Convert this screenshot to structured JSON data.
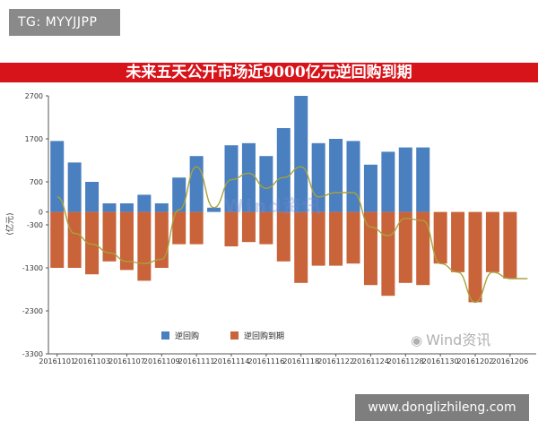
{
  "tag": "TG: MYYJJPP",
  "url": "www.donglizhileng.com",
  "source": {
    "icon": "wechat-icon",
    "text": "Wind资讯"
  },
  "watermark": "Wind资讯",
  "chart_data": {
    "type": "bar",
    "title": "未来五天公开市场近9000亿元逆回购到期",
    "ylabel": "(亿元)",
    "ylim": [
      -3300,
      2700
    ],
    "yticks": [
      2700,
      1700,
      700,
      0,
      -300,
      -1300,
      -2300,
      -3300
    ],
    "xticks": [
      "20161101",
      "20161103",
      "20161107",
      "20161109",
      "20161111",
      "20161114",
      "20161116",
      "20161118",
      "20161122",
      "20161124",
      "20161128",
      "20161130",
      "20161202",
      "20161206"
    ],
    "legend_position": "bottom-left",
    "series": [
      {
        "name": "逆回购",
        "color": "#4a7fc0",
        "values": [
          1650,
          1150,
          700,
          200,
          200,
          400,
          200,
          800,
          1300,
          100,
          1550,
          1600,
          1300,
          1950,
          2700,
          1600,
          1700,
          1650,
          1100,
          1400,
          1500,
          1500,
          0,
          0,
          0,
          0,
          0,
          0
        ]
      },
      {
        "name": "逆回购到期",
        "color": "#c9633a",
        "values": [
          -1300,
          -1300,
          -1450,
          -1150,
          -1350,
          -1600,
          -1300,
          -750,
          -750,
          0,
          -800,
          -700,
          -750,
          -1150,
          -1650,
          -1250,
          -1250,
          -1200,
          -1700,
          -1950,
          -1650,
          -1700,
          -1200,
          -1400,
          -2100,
          -1400,
          -1550,
          0
        ]
      },
      {
        "name": "",
        "color": "#a8a23a",
        "values": [
          350,
          -500,
          -750,
          -950,
          -1150,
          -1200,
          -1100,
          50,
          1050,
          100,
          750,
          900,
          550,
          800,
          1050,
          350,
          450,
          450,
          -350,
          -550,
          -150,
          -200,
          -1200,
          -1400,
          -2100,
          -1400,
          -1550,
          -1550
        ]
      }
    ]
  }
}
